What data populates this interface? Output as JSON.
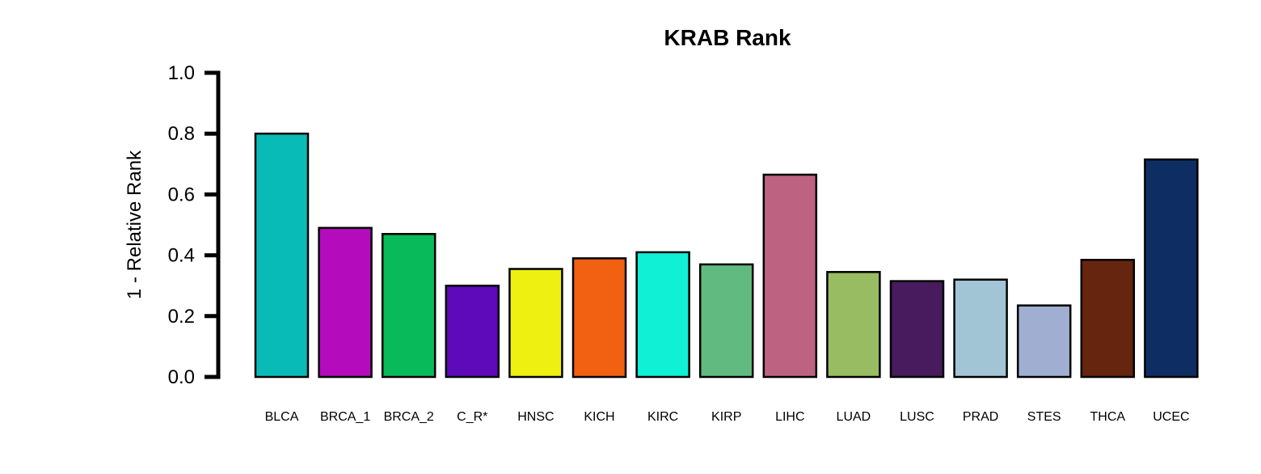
{
  "chart_data": {
    "type": "bar",
    "title": "KRAB Rank",
    "xlabel": "",
    "ylabel": "1 - Relative Rank",
    "ylim": [
      0,
      1.0
    ],
    "yticks": [
      "0.0",
      "0.2",
      "0.4",
      "0.6",
      "0.8",
      "1.0"
    ],
    "grid": false,
    "legend": "none",
    "categories": [
      "BLCA",
      "BRCA_1",
      "BRCA_2",
      "C_R*",
      "HNSC",
      "KICH",
      "KIRC",
      "KIRP",
      "LIHC",
      "LUAD",
      "LUSC",
      "PRAD",
      "STES",
      "THCA",
      "UCEC"
    ],
    "values": [
      0.8,
      0.49,
      0.47,
      0.3,
      0.355,
      0.39,
      0.41,
      0.37,
      0.665,
      0.345,
      0.315,
      0.32,
      0.235,
      0.385,
      0.715
    ],
    "colors": [
      "#08BBB6",
      "#B40BBC",
      "#09BA5A",
      "#5E09BA",
      "#EEF011",
      "#F26012",
      "#0FF0D4",
      "#61BA80",
      "#BE6282",
      "#97BC62",
      "#471B5E",
      "#A1C5D4",
      "#A0AED2",
      "#66250F",
      "#0E2E63"
    ],
    "bar_edge_color": "#000000"
  }
}
